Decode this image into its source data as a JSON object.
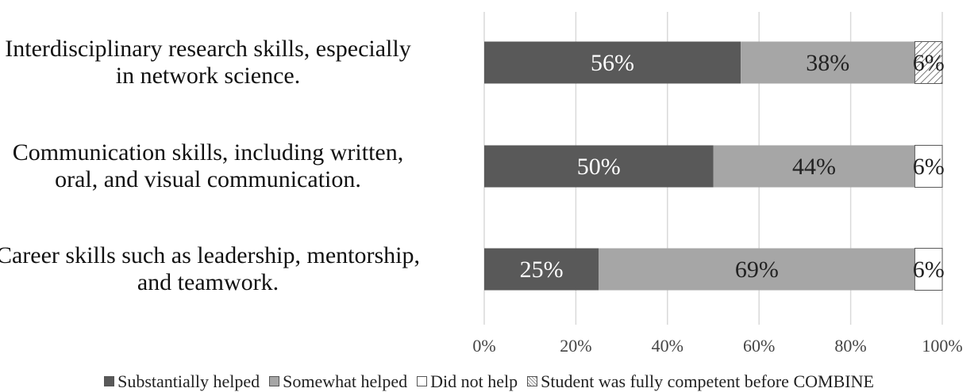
{
  "chart_data": {
    "type": "bar",
    "orientation": "horizontal",
    "stacked": true,
    "categories": [
      "Interdisciplinary research skills, especially in network science.",
      "Communication skills, including written, oral, and visual communication.",
      "Career skills such as leadership, mentorship, and teamwork."
    ],
    "category_lines": [
      [
        "Interdisciplinary research skills, especially",
        "in network science."
      ],
      [
        "Communication skills, including written,",
        "oral, and visual communication."
      ],
      [
        "Career skills such as leadership, mentorship,",
        "and teamwork."
      ]
    ],
    "series": [
      {
        "name": "Substantially helped",
        "values": [
          56,
          50,
          25
        ],
        "labels": [
          "56%",
          "50%",
          "25%"
        ],
        "color": "#595959"
      },
      {
        "name": "Somewhat helped",
        "values": [
          38,
          44,
          69
        ],
        "labels": [
          "38%",
          "44%",
          "69%"
        ],
        "color": "#a6a6a6"
      },
      {
        "name": "Did not help",
        "values": [
          0,
          6,
          6
        ],
        "labels": [
          "",
          "6%",
          "6%"
        ],
        "color": "#ffffff"
      },
      {
        "name": "Student was fully competent before COMBINE",
        "values": [
          6,
          0,
          0
        ],
        "labels": [
          "6%",
          "",
          ""
        ],
        "color": "hatch"
      }
    ],
    "xlim": [
      0,
      100
    ],
    "xticks": [
      "0%",
      "20%",
      "40%",
      "60%",
      "80%",
      "100%"
    ],
    "grid": true,
    "legend_position": "bottom"
  }
}
